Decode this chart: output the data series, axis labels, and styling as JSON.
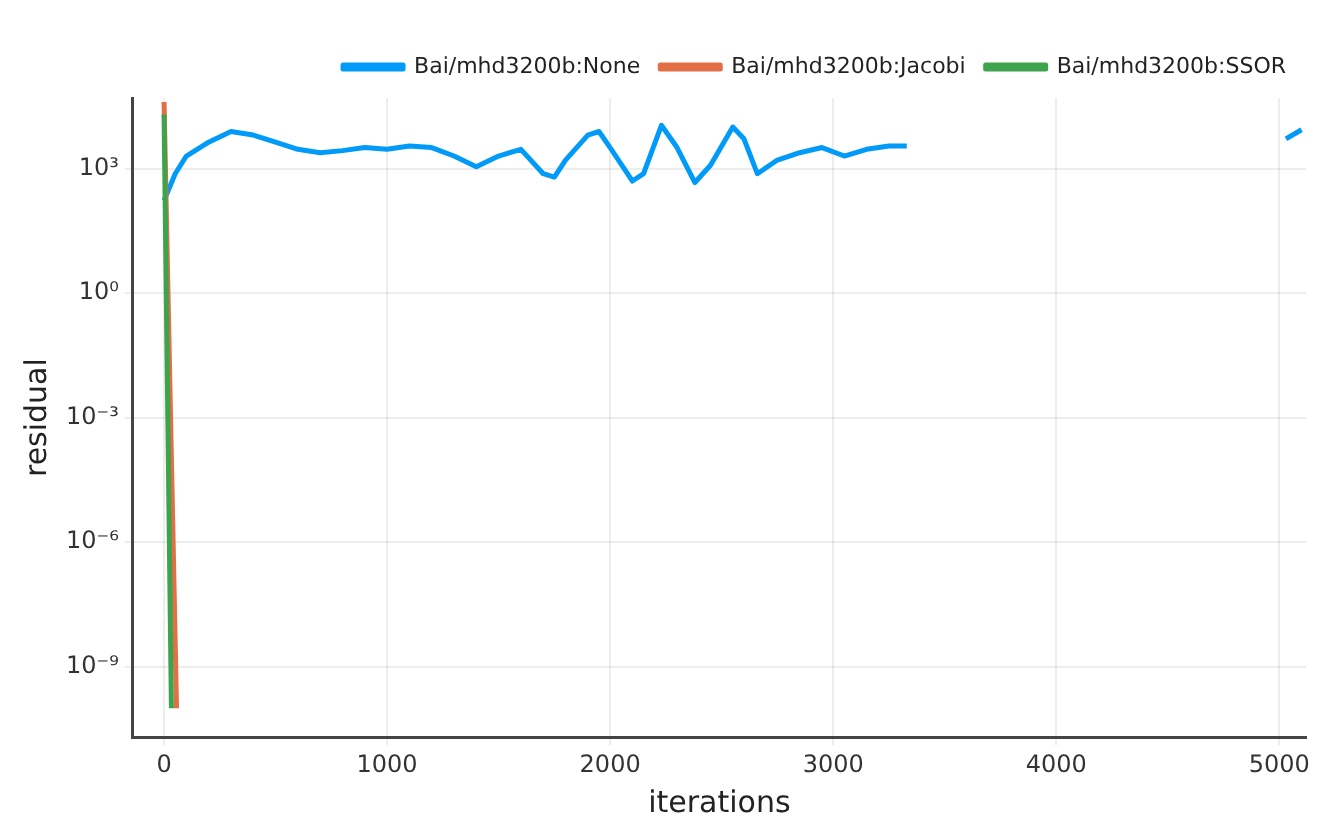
{
  "chart_data": {
    "type": "line",
    "xlabel": "iterations",
    "ylabel": "residual",
    "log": "y",
    "xlim": [
      -140,
      5120
    ],
    "xticks": [
      0,
      1000,
      2000,
      3000,
      4000,
      5000
    ],
    "ylim": [
      2e-11,
      50000.0
    ],
    "yticks": [
      {
        "value": 1e-09,
        "label": "10⁻⁹"
      },
      {
        "value": 1e-06,
        "label": "10⁻⁶"
      },
      {
        "value": 0.001,
        "label": "10⁻³"
      },
      {
        "value": 1,
        "label": "10⁰"
      },
      {
        "value": 1000,
        "label": "10³"
      }
    ],
    "grid": true,
    "legend": "top right",
    "marker": "none",
    "line_style": "solid",
    "series": [
      {
        "name": "Bai/mhd3200b:None",
        "color": "#009af9",
        "x": [
          0,
          50,
          100,
          200,
          300,
          400,
          500,
          600,
          700,
          800,
          900,
          1000,
          1100,
          1200,
          1300,
          1400,
          1500,
          1600,
          1700,
          1750,
          1800,
          1900,
          1950,
          2000,
          2100,
          2150,
          2230,
          2300,
          2380,
          2450,
          2550,
          2600,
          2660,
          2750,
          2850,
          2950,
          3050,
          3150,
          3250,
          3330,
          3450,
          5030,
          5100
        ],
        "values": [
          170,
          750,
          2000,
          4300,
          7800,
          6400,
          4300,
          2900,
          2400,
          2700,
          3200,
          2900,
          3500,
          3200,
          2000,
          1100,
          2000,
          2900,
          750,
          620,
          1600,
          6400,
          7800,
          3200,
          500,
          750,
          11000,
          3200,
          460,
          1200,
          10000,
          5200,
          750,
          1600,
          2400,
          3200,
          2000,
          2900,
          3500,
          3500,
          null,
          5200,
          8600
        ]
      },
      {
        "name": "Bai/mhd3200b:Jacobi",
        "color": "#e26f46",
        "x": [
          0,
          56
        ],
        "values": [
          40000,
          1e-10
        ]
      },
      {
        "name": "Bai/mhd3200b:SSOR",
        "color": "#3da44d",
        "x": [
          0,
          33
        ],
        "values": [
          20000,
          1e-10
        ]
      }
    ]
  }
}
